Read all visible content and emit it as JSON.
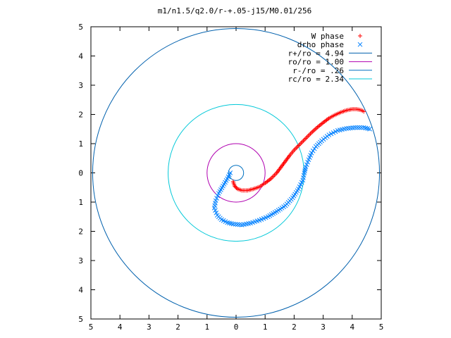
{
  "chart_data": {
    "type": "scatter",
    "title": "m1/n1.5/q2.0/r-+.05-j15/M0.01/256",
    "xlabel": "",
    "ylabel": "",
    "xlim": [
      -5,
      5
    ],
    "ylim": [
      -5,
      5
    ],
    "x_tick_labels": [
      "5",
      "4",
      "3",
      "2",
      "1",
      "0",
      "1",
      "2",
      "3",
      "4",
      "5"
    ],
    "y_tick_labels": [
      "5",
      "4",
      "3",
      "2",
      "1",
      "0",
      "1",
      "2",
      "3",
      "4",
      "5"
    ],
    "x_ticks": [
      -5,
      -4,
      -3,
      -2,
      -1,
      0,
      1,
      2,
      3,
      4,
      5
    ],
    "y_ticks": [
      5,
      4,
      3,
      2,
      1,
      0,
      -1,
      -2,
      -3,
      -4,
      -5
    ],
    "grid": false,
    "legend_position": "top-right",
    "series": [
      {
        "name": "W phase",
        "kind": "points",
        "marker": "+",
        "color": "#ff0000",
        "points": [
          [
            -0.1,
            -0.3
          ],
          [
            -0.05,
            -0.45
          ],
          [
            0.05,
            -0.55
          ],
          [
            0.2,
            -0.6
          ],
          [
            0.4,
            -0.6
          ],
          [
            0.6,
            -0.55
          ],
          [
            0.8,
            -0.48
          ],
          [
            1.0,
            -0.35
          ],
          [
            1.2,
            -0.2
          ],
          [
            1.4,
            0.0
          ],
          [
            1.55,
            0.2
          ],
          [
            1.7,
            0.4
          ],
          [
            1.85,
            0.6
          ],
          [
            2.0,
            0.78
          ],
          [
            2.2,
            0.98
          ],
          [
            2.4,
            1.18
          ],
          [
            2.6,
            1.38
          ],
          [
            2.8,
            1.56
          ],
          [
            3.0,
            1.72
          ],
          [
            3.2,
            1.87
          ],
          [
            3.4,
            1.98
          ],
          [
            3.6,
            2.07
          ],
          [
            3.8,
            2.14
          ],
          [
            4.0,
            2.18
          ],
          [
            4.15,
            2.18
          ],
          [
            4.3,
            2.15
          ],
          [
            4.4,
            2.1
          ]
        ]
      },
      {
        "name": "drho phase",
        "kind": "points",
        "marker": "x",
        "color": "#0080ff",
        "points": [
          [
            -0.2,
            0.0
          ],
          [
            -0.3,
            -0.2
          ],
          [
            -0.45,
            -0.45
          ],
          [
            -0.6,
            -0.7
          ],
          [
            -0.7,
            -0.95
          ],
          [
            -0.75,
            -1.2
          ],
          [
            -0.65,
            -1.45
          ],
          [
            -0.5,
            -1.6
          ],
          [
            -0.3,
            -1.7
          ],
          [
            -0.1,
            -1.75
          ],
          [
            0.2,
            -1.78
          ],
          [
            0.5,
            -1.72
          ],
          [
            0.8,
            -1.62
          ],
          [
            1.1,
            -1.5
          ],
          [
            1.4,
            -1.32
          ],
          [
            1.7,
            -1.12
          ],
          [
            1.95,
            -0.85
          ],
          [
            2.15,
            -0.55
          ],
          [
            2.3,
            -0.25
          ],
          [
            2.35,
            0.0
          ],
          [
            2.4,
            0.2
          ],
          [
            2.5,
            0.45
          ],
          [
            2.6,
            0.68
          ],
          [
            2.75,
            0.9
          ],
          [
            2.95,
            1.1
          ],
          [
            3.2,
            1.3
          ],
          [
            3.5,
            1.45
          ],
          [
            3.8,
            1.52
          ],
          [
            4.1,
            1.55
          ],
          [
            4.4,
            1.55
          ],
          [
            4.6,
            1.5
          ]
        ]
      },
      {
        "name": "r+/ro = 4.94",
        "kind": "circle",
        "radius": 4.94,
        "color": "#0060ad"
      },
      {
        "name": "ro/ro = 1.00",
        "kind": "circle",
        "radius": 1.0,
        "color": "#b000b0"
      },
      {
        "name": "r-/ro = .26",
        "kind": "circle",
        "radius": 0.26,
        "color": "#0070c0"
      },
      {
        "name": "rc/ro = 2.34",
        "kind": "circle",
        "radius": 2.34,
        "color": "#00c8d8"
      }
    ]
  }
}
